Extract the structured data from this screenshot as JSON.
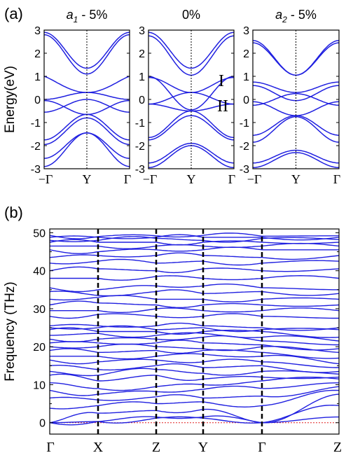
{
  "chart_data": [
    {
      "type": "line",
      "panel_label": "(a)",
      "ylabel": "Energy(eV)",
      "ylim": [
        -3,
        3
      ],
      "yticks": [
        "3",
        "2",
        "1",
        "0",
        "-1",
        "-2",
        "-3"
      ],
      "xticks": [
        "−Γ",
        "Y",
        "Γ"
      ],
      "band_labels": [
        "I",
        "II"
      ],
      "line_color": "#2020e0",
      "subplots": [
        {
          "title_var": "a",
          "title_sub": "1",
          "title_rest": " - 5%",
          "bands": [
            {
              "edge": 2.9,
              "center": 1.35
            },
            {
              "edge": 2.8,
              "center": 1.1
            },
            {
              "edge": 1.0,
              "center": 0.3,
              "shape": "cusp"
            },
            {
              "edge": 0.0,
              "center": 0.3,
              "shape": "cross-up"
            },
            {
              "edge": -0.55,
              "center": 0.0,
              "shape": "flat-up"
            },
            {
              "edge": -0.05,
              "center": -0.65
            },
            {
              "edge": -1.75,
              "center": -0.65
            },
            {
              "edge": -1.95,
              "center": -0.8
            },
            {
              "edge": -2.55,
              "center": -1.45
            },
            {
              "edge": -2.9,
              "center": -1.45
            }
          ]
        },
        {
          "title_var": "",
          "title_sub": "",
          "title_rest": "0%",
          "bands": [
            {
              "edge": 2.9,
              "center": 1.35
            },
            {
              "edge": 2.75,
              "center": 1.05
            },
            {
              "edge": 1.0,
              "center": -0.45
            },
            {
              "edge": 0.95,
              "center": 0.3
            },
            {
              "edge": -0.2,
              "center": 0.3
            },
            {
              "edge": -0.2,
              "center": -0.5
            },
            {
              "edge": -1.65,
              "center": -0.5
            },
            {
              "edge": -1.75,
              "center": -0.7
            },
            {
              "edge": -2.75,
              "center": -1.9
            },
            {
              "edge": -2.95,
              "center": -2.0
            }
          ]
        },
        {
          "title_var": "a",
          "title_sub": "2",
          "title_rest": " - 5%",
          "bands": [
            {
              "edge": 2.55,
              "center": 1.05
            },
            {
              "edge": 2.45,
              "center": 1.05
            },
            {
              "edge": 0.75,
              "center": 0.3
            },
            {
              "edge": 0.6,
              "center": -0.05
            },
            {
              "edge": -0.25,
              "center": 0.25
            },
            {
              "edge": -0.1,
              "center": -0.7
            },
            {
              "edge": -1.55,
              "center": -0.7
            },
            {
              "edge": -1.85,
              "center": -0.75
            },
            {
              "edge": -2.75,
              "center": -2.2
            },
            {
              "edge": -2.95,
              "center": -2.3
            }
          ]
        }
      ]
    },
    {
      "type": "line",
      "panel_label": "(b)",
      "ylabel": "Frequency (THz)",
      "ylim": [
        -3,
        51
      ],
      "yticks": [
        0,
        10,
        20,
        30,
        40,
        50
      ],
      "xticks": [
        "Γ",
        "X",
        "Z",
        "Y",
        "Γ",
        "Z"
      ],
      "line_color": "#2020e0",
      "zero_line_color": "#e02020",
      "branches": [
        [
          0,
          0.3,
          1.5,
          1.5,
          0,
          1.5
        ],
        [
          0,
          0.3,
          1.2,
          1.2,
          0,
          4.5
        ],
        [
          0,
          2.5,
          3.2,
          3.5,
          0,
          7.5
        ],
        [
          3.8,
          4.5,
          5.0,
          5.5,
          4.5,
          8.5
        ],
        [
          6.5,
          6.0,
          6.8,
          6.5,
          7.0,
          9.5
        ],
        [
          8.5,
          7.5,
          8.2,
          8.8,
          9.0,
          10.5
        ],
        [
          10.5,
          9.0,
          9.5,
          10.0,
          11.0,
          11.5
        ],
        [
          12.5,
          11.0,
          12.5,
          11.5,
          12.0,
          12.0
        ],
        [
          13.5,
          12.5,
          14.0,
          13.0,
          13.5,
          12.8
        ],
        [
          15.0,
          14.0,
          15.0,
          14.5,
          15.0,
          13.5
        ],
        [
          16.5,
          16.0,
          16.5,
          16.0,
          16.0,
          14.5
        ],
        [
          17.5,
          17.5,
          17.5,
          18.0,
          17.5,
          15.5
        ],
        [
          19.0,
          18.5,
          19.0,
          19.0,
          18.5,
          17.0
        ],
        [
          20.0,
          20.0,
          20.0,
          19.5,
          20.0,
          18.5
        ],
        [
          21.0,
          21.0,
          21.0,
          21.0,
          20.5,
          19.5
        ],
        [
          22.0,
          22.0,
          22.0,
          22.5,
          21.5,
          20.5
        ],
        [
          23.0,
          23.5,
          23.0,
          23.5,
          22.5,
          21.5
        ],
        [
          24.5,
          24.0,
          24.0,
          24.0,
          24.0,
          22.5
        ],
        [
          25.0,
          25.0,
          24.5,
          25.0,
          24.5,
          24.5
        ],
        [
          25.5,
          25.5,
          25.5,
          25.5,
          25.0,
          25.0
        ],
        [
          28.0,
          28.5,
          28.0,
          28.0,
          28.0,
          27.5
        ],
        [
          29.5,
          29.5,
          30.0,
          29.5,
          29.5,
          29.5
        ],
        [
          31.0,
          31.5,
          31.0,
          31.0,
          31.0,
          31.0
        ],
        [
          32.5,
          33.0,
          32.5,
          32.5,
          32.5,
          32.5
        ],
        [
          34.5,
          33.5,
          34.5,
          34.0,
          34.5,
          34.0
        ],
        [
          35.5,
          35.0,
          36.0,
          36.0,
          35.5,
          35.0
        ],
        [
          38.0,
          38.0,
          38.5,
          38.0,
          38.0,
          38.0
        ],
        [
          40.0,
          40.5,
          40.0,
          40.5,
          40.0,
          40.5
        ],
        [
          42.0,
          42.5,
          42.0,
          42.5,
          42.0,
          42.5
        ],
        [
          43.5,
          44.0,
          44.0,
          44.0,
          43.5,
          44.0
        ],
        [
          45.5,
          45.0,
          45.5,
          45.5,
          45.5,
          45.5
        ],
        [
          46.5,
          46.5,
          46.5,
          46.5,
          46.5,
          46.5
        ],
        [
          47.5,
          47.5,
          47.5,
          47.5,
          47.5,
          47.5
        ],
        [
          48.0,
          48.0,
          48.5,
          48.0,
          48.5,
          48.2
        ],
        [
          48.8,
          48.8,
          48.8,
          48.8,
          48.8,
          48.8
        ],
        [
          49.3,
          49.0,
          49.2,
          49.3,
          49.1,
          49.2
        ]
      ]
    }
  ]
}
